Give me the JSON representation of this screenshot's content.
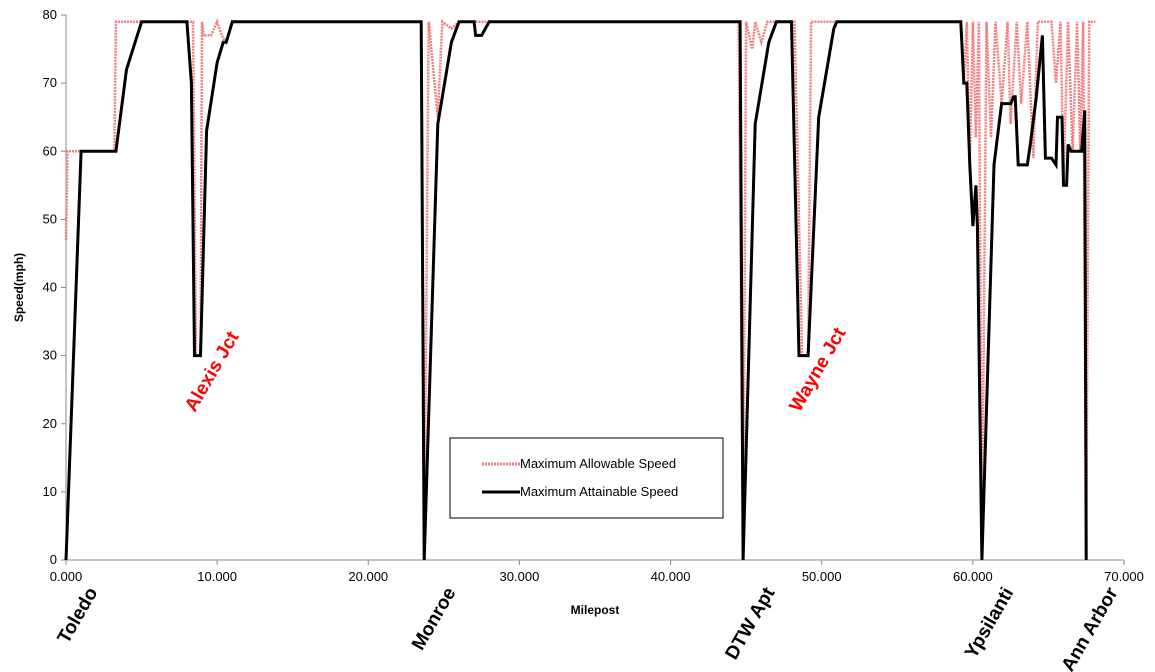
{
  "chart_data": {
    "type": "line",
    "title": "",
    "xlabel": "Milepost",
    "ylabel": "Speed(mph)",
    "xlim": [
      0,
      70
    ],
    "ylim": [
      0,
      80
    ],
    "x_tick_labels": [
      "0.000",
      "10.000",
      "20.000",
      "30.000",
      "40.000",
      "50.000",
      "60.000",
      "70.000"
    ],
    "y_tick_labels": [
      "0",
      "10",
      "20",
      "30",
      "40",
      "50",
      "60",
      "70",
      "80"
    ],
    "grid": false,
    "legend": "inside-bottom-center",
    "colors": {
      "allowable": "#f08080",
      "attainable": "#000000",
      "junction": "#ff0000"
    },
    "series": [
      {
        "name": "Maximum Allowable Speed",
        "points": [
          [
            0,
            47
          ],
          [
            0.1,
            60
          ],
          [
            1.0,
            60
          ],
          [
            3.2,
            60
          ],
          [
            3.3,
            79
          ],
          [
            8.0,
            79
          ],
          [
            8.4,
            79
          ],
          [
            8.6,
            30
          ],
          [
            8.9,
            30
          ],
          [
            9.0,
            79
          ],
          [
            9.1,
            77
          ],
          [
            9.6,
            77
          ],
          [
            10.0,
            79
          ],
          [
            10.3,
            77
          ],
          [
            10.6,
            76
          ],
          [
            11.0,
            79
          ],
          [
            23.5,
            79
          ],
          [
            23.7,
            0
          ],
          [
            24.0,
            79
          ],
          [
            24.3,
            72
          ],
          [
            24.6,
            65
          ],
          [
            24.9,
            79
          ],
          [
            25.5,
            78
          ],
          [
            26.0,
            79
          ],
          [
            44.5,
            79
          ],
          [
            44.8,
            0
          ],
          [
            45.0,
            79
          ],
          [
            45.4,
            75
          ],
          [
            45.6,
            79
          ],
          [
            46.0,
            76
          ],
          [
            46.4,
            79
          ],
          [
            47.2,
            79
          ],
          [
            47.6,
            79
          ],
          [
            48.2,
            79
          ],
          [
            48.7,
            30
          ],
          [
            49.1,
            30
          ],
          [
            49.3,
            79
          ],
          [
            59.2,
            79
          ],
          [
            59.4,
            70
          ],
          [
            59.6,
            79
          ],
          [
            59.8,
            58
          ],
          [
            60.0,
            79
          ],
          [
            60.2,
            62
          ],
          [
            60.4,
            79
          ],
          [
            60.6,
            0
          ],
          [
            60.9,
            79
          ],
          [
            61.2,
            62
          ],
          [
            61.5,
            79
          ],
          [
            61.9,
            67
          ],
          [
            62.3,
            79
          ],
          [
            62.5,
            64
          ],
          [
            62.9,
            79
          ],
          [
            63.2,
            67
          ],
          [
            63.6,
            79
          ],
          [
            64.0,
            59
          ],
          [
            64.3,
            79
          ],
          [
            64.6,
            79
          ],
          [
            65.2,
            79
          ],
          [
            65.5,
            70
          ],
          [
            65.8,
            79
          ],
          [
            66.0,
            56
          ],
          [
            66.3,
            79
          ],
          [
            66.6,
            60
          ],
          [
            66.9,
            79
          ],
          [
            67.1,
            60
          ],
          [
            67.3,
            79
          ],
          [
            67.5,
            0
          ],
          [
            67.7,
            79
          ],
          [
            68.1,
            79
          ]
        ]
      },
      {
        "name": "Maximum Attainable Speed",
        "points": [
          [
            0,
            0
          ],
          [
            1.0,
            60
          ],
          [
            3.3,
            60
          ],
          [
            4.0,
            72
          ],
          [
            5.0,
            79
          ],
          [
            8.0,
            79
          ],
          [
            8.3,
            70
          ],
          [
            8.5,
            30
          ],
          [
            8.9,
            30
          ],
          [
            9.3,
            63
          ],
          [
            10.0,
            73
          ],
          [
            10.4,
            76
          ],
          [
            10.6,
            76
          ],
          [
            11.0,
            79
          ],
          [
            23.5,
            79
          ],
          [
            23.7,
            0
          ],
          [
            24.6,
            64
          ],
          [
            25.5,
            76
          ],
          [
            26.0,
            79
          ],
          [
            27.0,
            79
          ],
          [
            27.1,
            77
          ],
          [
            27.5,
            77
          ],
          [
            28.0,
            79
          ],
          [
            44.6,
            79
          ],
          [
            44.8,
            0
          ],
          [
            45.6,
            64
          ],
          [
            46.5,
            76
          ],
          [
            47.0,
            79
          ],
          [
            48.0,
            79
          ],
          [
            48.5,
            30
          ],
          [
            49.1,
            30
          ],
          [
            49.8,
            65
          ],
          [
            50.8,
            78
          ],
          [
            51.0,
            79
          ],
          [
            59.2,
            79
          ],
          [
            59.4,
            70
          ],
          [
            59.6,
            70
          ],
          [
            59.8,
            58
          ],
          [
            60.0,
            49
          ],
          [
            60.2,
            55
          ],
          [
            60.3,
            49
          ],
          [
            60.6,
            0
          ],
          [
            61.4,
            58
          ],
          [
            61.9,
            67
          ],
          [
            62.5,
            67
          ],
          [
            62.7,
            68
          ],
          [
            62.8,
            68
          ],
          [
            63.0,
            58
          ],
          [
            63.6,
            58
          ],
          [
            63.8,
            61
          ],
          [
            64.2,
            68
          ],
          [
            64.6,
            77
          ],
          [
            64.8,
            59
          ],
          [
            65.2,
            59
          ],
          [
            65.5,
            58
          ],
          [
            65.6,
            65
          ],
          [
            65.9,
            65
          ],
          [
            66.0,
            55
          ],
          [
            66.2,
            55
          ],
          [
            66.3,
            61
          ],
          [
            66.5,
            60
          ],
          [
            67.2,
            60
          ],
          [
            67.4,
            66
          ],
          [
            67.5,
            0
          ]
        ]
      }
    ],
    "station_labels": [
      {
        "label": "Toledo",
        "x": 0
      },
      {
        "label": "Monroe",
        "x": 23.7
      },
      {
        "label": "DTW Apt",
        "x": 44.8
      },
      {
        "label": "Ypsilanti",
        "x": 60.6
      },
      {
        "label": "Ann Arbor",
        "x": 67.5
      }
    ],
    "annotations": [
      {
        "text": "Alexis Jct",
        "x": 8.0,
        "y": 26
      },
      {
        "text": "Wayne Jct",
        "x": 48.0,
        "y": 26
      }
    ]
  }
}
